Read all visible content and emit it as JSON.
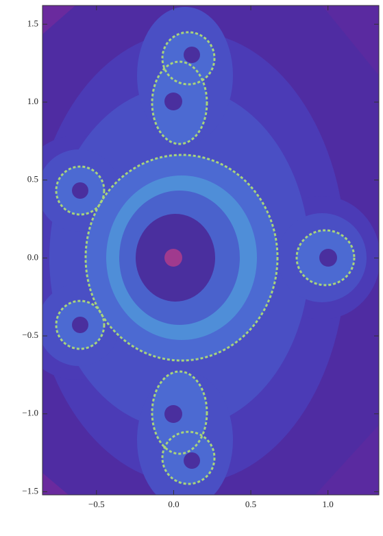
{
  "chart_data": {
    "type": "density",
    "xlim": [
      -0.85,
      1.33
    ],
    "ylim": [
      -1.52,
      1.62
    ],
    "xticks": [
      {
        "value": -0.5,
        "label": "−0.5"
      },
      {
        "value": 0,
        "label": "0.0"
      },
      0.5,
      {
        "value": 1,
        "label": "1.0"
      }
    ],
    "yticks": [
      {
        "value": -1.5,
        "label": "−1.5"
      },
      {
        "value": -1,
        "label": "−1.0"
      },
      {
        "value": -0.5,
        "label": "−0.5"
      },
      {
        "value": 0,
        "label": "0.0"
      },
      0.5,
      {
        "value": 1,
        "label": "1.0"
      },
      1.5
    ]
  }
}
